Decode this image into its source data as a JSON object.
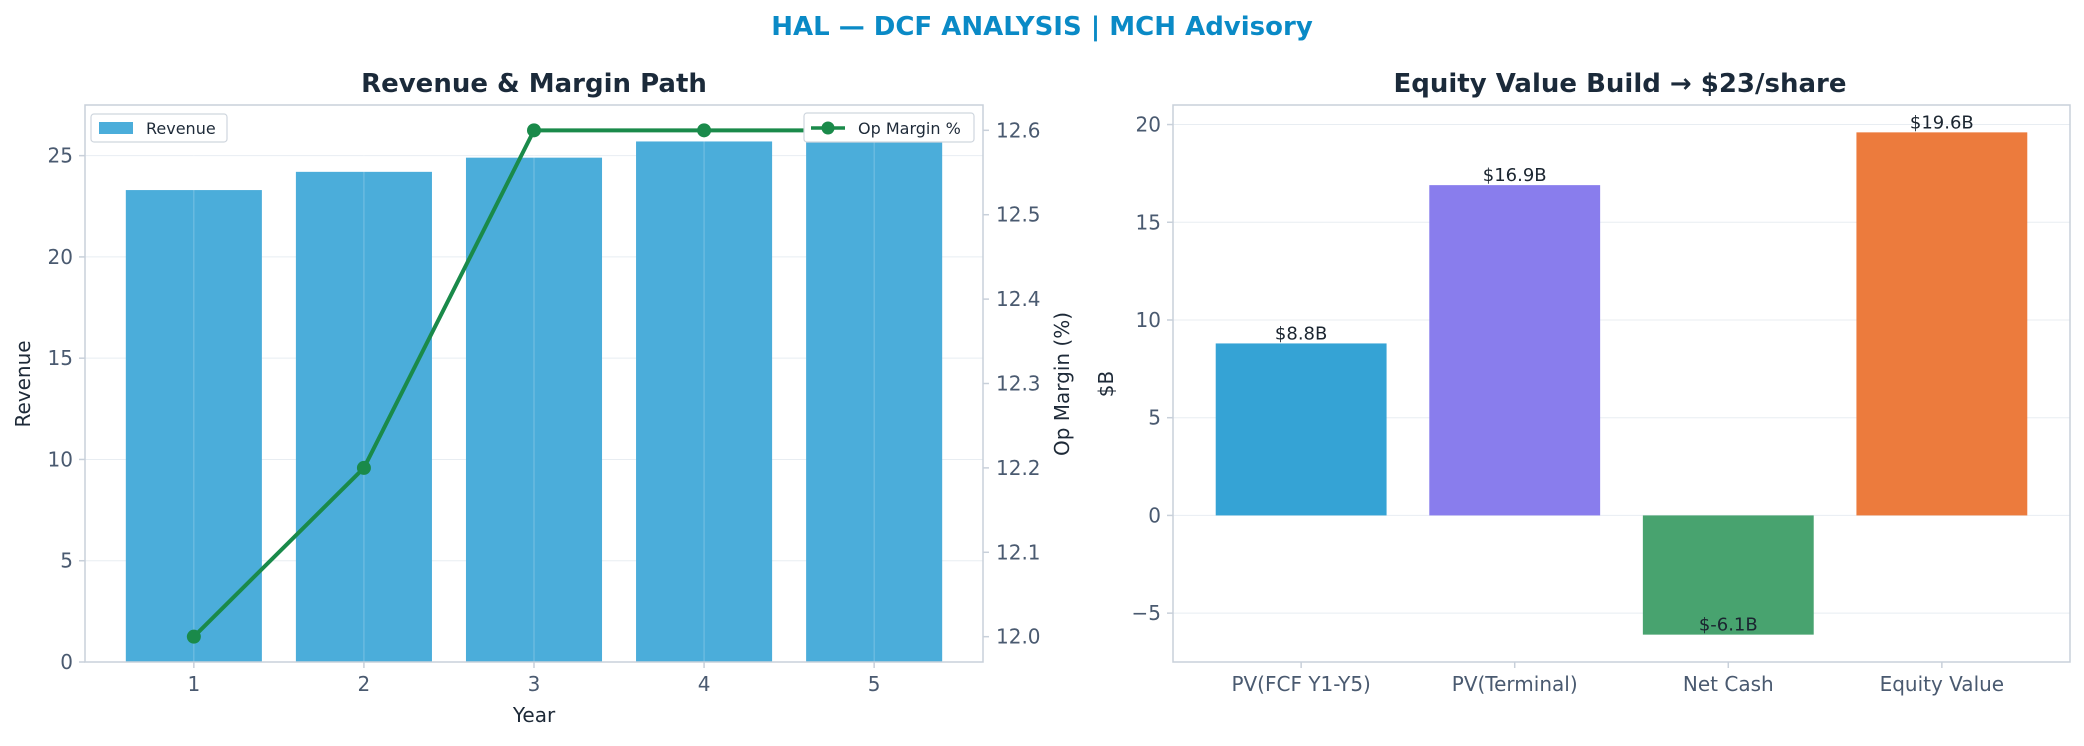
{
  "figure": {
    "suptitle": "HAL — DCF ANALYSIS | MCH Advisory",
    "colors": {
      "title": "#0a8ac6",
      "heading": "#1b2a3a",
      "tick": "#4a5a70",
      "axis": "#c8d0da",
      "grid": "#e8edf2"
    }
  },
  "chart_data": [
    {
      "type": "bar",
      "title": "Revenue & Margin Path",
      "xlabel": "Year",
      "ylabel": "Revenue",
      "ylim": [
        0,
        27.5
      ],
      "yticks": [
        0,
        5,
        10,
        15,
        20,
        25
      ],
      "categories": [
        "1",
        "2",
        "3",
        "4",
        "5"
      ],
      "grid": true,
      "bar_color": "#4badda",
      "series": [
        {
          "name": "Revenue",
          "values": [
            23.3,
            24.2,
            24.9,
            25.7,
            26.4
          ],
          "color": "#4badda"
        }
      ],
      "secondary_axis": {
        "type": "line",
        "ylabel": "Op Margin (%)",
        "ylim": [
          11.97,
          12.63
        ],
        "yticks": [
          12.0,
          12.1,
          12.2,
          12.3,
          12.4,
          12.5,
          12.6
        ],
        "series": [
          {
            "name": "Op Margin %",
            "values": [
              12.0,
              12.2,
              12.6,
              12.6,
              12.6
            ],
            "color": "#1a8a4a"
          }
        ]
      },
      "legend": {
        "left": "top-left",
        "right": "top-right"
      }
    },
    {
      "type": "bar",
      "title": "Equity Value Build → $23/share",
      "xlabel": "",
      "ylabel": "$B",
      "ylim": [
        -7.5,
        21
      ],
      "yticks": [
        -5,
        0,
        5,
        10,
        15,
        20
      ],
      "grid": true,
      "categories": [
        "PV(FCF Y1-Y5)",
        "PV(Terminal)",
        "Net Cash",
        "Equity Value"
      ],
      "values": [
        8.8,
        16.9,
        -6.1,
        19.6
      ],
      "data_labels": [
        "$8.8B",
        "$16.9B",
        "$-6.1B",
        "$19.6B"
      ],
      "colors": [
        "#35a3d5",
        "#897ded",
        "#48a36f",
        "#ec7b3d"
      ]
    }
  ]
}
